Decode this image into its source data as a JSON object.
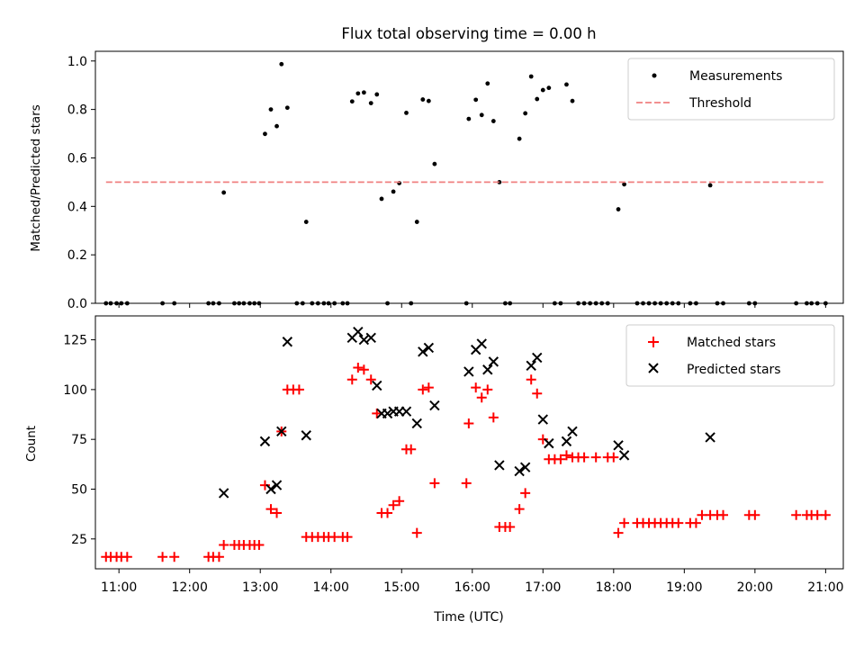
{
  "title": "Flux total observing time = 0.00 h",
  "chart_data": [
    {
      "type": "scatter",
      "ylabel": "Matched/Predicted stars",
      "ylim": [
        0,
        1.04
      ],
      "xlim": [
        "10:40",
        "21:15"
      ],
      "yticks": [
        {
          "v": 0,
          "label": "0.0"
        },
        {
          "v": 0.2,
          "label": "0.2"
        },
        {
          "v": 0.4,
          "label": "0.4"
        },
        {
          "v": 0.6,
          "label": "0.6"
        },
        {
          "v": 0.8,
          "label": "0.8"
        },
        {
          "v": 1.0,
          "label": "1.0"
        }
      ],
      "legend": {
        "position": "top-right"
      },
      "series": [
        {
          "name": "Measurements",
          "marker": "dot",
          "color": "#000000",
          "points": [
            [
              "10:49",
              0
            ],
            [
              "10:53",
              0
            ],
            [
              "10:58",
              0
            ],
            [
              "11:02",
              0
            ],
            [
              "11:07",
              0
            ],
            [
              "11:37",
              0
            ],
            [
              "11:47",
              0
            ],
            [
              "12:16",
              0
            ],
            [
              "12:20",
              0
            ],
            [
              "12:25",
              0
            ],
            [
              "12:29",
              0.457
            ],
            [
              "12:38",
              0
            ],
            [
              "12:42",
              0
            ],
            [
              "12:46",
              0
            ],
            [
              "12:51",
              0
            ],
            [
              "12:55",
              0
            ],
            [
              "12:59",
              0
            ],
            [
              "13:04",
              0.699
            ],
            [
              "13:09",
              0.8
            ],
            [
              "13:14",
              0.731
            ],
            [
              "13:18",
              0.987
            ],
            [
              "13:23",
              0.807
            ],
            [
              "13:31",
              0
            ],
            [
              "13:36",
              0
            ],
            [
              "13:39",
              0.336
            ],
            [
              "13:44",
              0
            ],
            [
              "13:49",
              0
            ],
            [
              "13:54",
              0
            ],
            [
              "13:58",
              0
            ],
            [
              "14:03",
              0
            ],
            [
              "14:10",
              0
            ],
            [
              "14:14",
              0
            ],
            [
              "14:18",
              0.833
            ],
            [
              "14:23",
              0.866
            ],
            [
              "14:28",
              0.87
            ],
            [
              "14:34",
              0.826
            ],
            [
              "14:39",
              0.862
            ],
            [
              "14:43",
              0.431
            ],
            [
              "14:48",
              0
            ],
            [
              "14:53",
              0.461
            ],
            [
              "14:58",
              0.496
            ],
            [
              "15:04",
              0.786
            ],
            [
              "15:08",
              0
            ],
            [
              "15:13",
              0.336
            ],
            [
              "15:18",
              0.841
            ],
            [
              "15:23",
              0.835
            ],
            [
              "15:28",
              0.575
            ],
            [
              "15:55",
              0
            ],
            [
              "15:57",
              0.761
            ],
            [
              "16:03",
              0.84
            ],
            [
              "16:08",
              0.777
            ],
            [
              "16:13",
              0.907
            ],
            [
              "16:18",
              0.752
            ],
            [
              "16:23",
              0.5
            ],
            [
              "16:28",
              0
            ],
            [
              "16:32",
              0
            ],
            [
              "16:40",
              0.679
            ],
            [
              "16:45",
              0.784
            ],
            [
              "16:50",
              0.936
            ],
            [
              "16:55",
              0.843
            ],
            [
              "17:00",
              0.88
            ],
            [
              "17:05",
              0.889
            ],
            [
              "17:10",
              0
            ],
            [
              "17:15",
              0
            ],
            [
              "17:20",
              0.903
            ],
            [
              "17:25",
              0.835
            ],
            [
              "17:30",
              0
            ],
            [
              "17:35",
              0
            ],
            [
              "17:40",
              0
            ],
            [
              "17:45",
              0
            ],
            [
              "17:50",
              0
            ],
            [
              "17:55",
              0
            ],
            [
              "18:04",
              0.388
            ],
            [
              "18:09",
              0.491
            ],
            [
              "18:20",
              0
            ],
            [
              "18:25",
              0
            ],
            [
              "18:30",
              0
            ],
            [
              "18:35",
              0
            ],
            [
              "18:40",
              0
            ],
            [
              "18:45",
              0
            ],
            [
              "18:50",
              0
            ],
            [
              "18:55",
              0
            ],
            [
              "19:05",
              0
            ],
            [
              "19:10",
              0
            ],
            [
              "19:22",
              0.487
            ],
            [
              "19:28",
              0
            ],
            [
              "19:33",
              0
            ],
            [
              "19:55",
              0
            ],
            [
              "20:00",
              0
            ],
            [
              "20:35",
              0
            ],
            [
              "20:44",
              0
            ],
            [
              "20:48",
              0
            ],
            [
              "20:53",
              0
            ],
            [
              "21:00",
              0
            ]
          ]
        },
        {
          "name": "Threshold",
          "marker": "dashed-line",
          "color": "#f08080",
          "points": [
            [
              "10:49",
              0.5
            ],
            [
              "21:00",
              0.5
            ]
          ]
        }
      ]
    },
    {
      "type": "scatter",
      "xlabel": "Time (UTC)",
      "ylabel": "Count",
      "ylim": [
        10,
        137
      ],
      "xlim": [
        "10:40",
        "21:15"
      ],
      "yticks": [
        {
          "v": 25,
          "label": "25"
        },
        {
          "v": 50,
          "label": "50"
        },
        {
          "v": 75,
          "label": "75"
        },
        {
          "v": 100,
          "label": "100"
        },
        {
          "v": 125,
          "label": "125"
        }
      ],
      "xticks": [
        "11:00",
        "12:00",
        "13:00",
        "14:00",
        "15:00",
        "16:00",
        "17:00",
        "18:00",
        "19:00",
        "20:00",
        "21:00"
      ],
      "legend": {
        "position": "top-right"
      },
      "series": [
        {
          "name": "Matched stars",
          "marker": "plus",
          "color": "#ff0000",
          "points": [
            [
              "10:49",
              16
            ],
            [
              "10:53",
              16
            ],
            [
              "10:58",
              16
            ],
            [
              "11:02",
              16
            ],
            [
              "11:07",
              16
            ],
            [
              "11:37",
              16
            ],
            [
              "11:47",
              16
            ],
            [
              "12:16",
              16
            ],
            [
              "12:20",
              16
            ],
            [
              "12:25",
              16
            ],
            [
              "12:29",
              22
            ],
            [
              "12:38",
              22
            ],
            [
              "12:42",
              22
            ],
            [
              "12:46",
              22
            ],
            [
              "12:51",
              22
            ],
            [
              "12:55",
              22
            ],
            [
              "12:59",
              22
            ],
            [
              "13:04",
              52
            ],
            [
              "13:09",
              40
            ],
            [
              "13:14",
              38
            ],
            [
              "13:18",
              79
            ],
            [
              "13:23",
              100
            ],
            [
              "13:28",
              100
            ],
            [
              "13:33",
              100
            ],
            [
              "13:39",
              26
            ],
            [
              "13:44",
              26
            ],
            [
              "13:49",
              26
            ],
            [
              "13:54",
              26
            ],
            [
              "13:58",
              26
            ],
            [
              "14:03",
              26
            ],
            [
              "14:10",
              26
            ],
            [
              "14:14",
              26
            ],
            [
              "14:18",
              105
            ],
            [
              "14:23",
              111
            ],
            [
              "14:28",
              110
            ],
            [
              "14:34",
              105
            ],
            [
              "14:39",
              88
            ],
            [
              "14:43",
              38
            ],
            [
              "14:48",
              38
            ],
            [
              "14:53",
              42
            ],
            [
              "14:58",
              44
            ],
            [
              "15:04",
              70
            ],
            [
              "15:08",
              70
            ],
            [
              "15:13",
              28
            ],
            [
              "15:18",
              100
            ],
            [
              "15:23",
              101
            ],
            [
              "15:28",
              53
            ],
            [
              "15:55",
              53
            ],
            [
              "15:57",
              83
            ],
            [
              "16:03",
              101
            ],
            [
              "16:08",
              96
            ],
            [
              "16:13",
              100
            ],
            [
              "16:18",
              86
            ],
            [
              "16:23",
              31
            ],
            [
              "16:28",
              31
            ],
            [
              "16:32",
              31
            ],
            [
              "16:40",
              40
            ],
            [
              "16:45",
              48
            ],
            [
              "16:50",
              105
            ],
            [
              "16:55",
              98
            ],
            [
              "17:00",
              75
            ],
            [
              "17:05",
              65
            ],
            [
              "17:10",
              65
            ],
            [
              "17:15",
              65
            ],
            [
              "17:20",
              67
            ],
            [
              "17:25",
              66
            ],
            [
              "17:30",
              66
            ],
            [
              "17:35",
              66
            ],
            [
              "17:45",
              66
            ],
            [
              "17:55",
              66
            ],
            [
              "18:00",
              66
            ],
            [
              "18:04",
              28
            ],
            [
              "18:09",
              33
            ],
            [
              "18:20",
              33
            ],
            [
              "18:25",
              33
            ],
            [
              "18:30",
              33
            ],
            [
              "18:35",
              33
            ],
            [
              "18:40",
              33
            ],
            [
              "18:45",
              33
            ],
            [
              "18:50",
              33
            ],
            [
              "18:55",
              33
            ],
            [
              "19:05",
              33
            ],
            [
              "19:10",
              33
            ],
            [
              "19:15",
              37
            ],
            [
              "19:22",
              37
            ],
            [
              "19:28",
              37
            ],
            [
              "19:33",
              37
            ],
            [
              "19:55",
              37
            ],
            [
              "20:00",
              37
            ],
            [
              "20:35",
              37
            ],
            [
              "20:44",
              37
            ],
            [
              "20:48",
              37
            ],
            [
              "20:53",
              37
            ],
            [
              "21:00",
              37
            ]
          ]
        },
        {
          "name": "Predicted stars",
          "marker": "x",
          "color": "#000000",
          "points": [
            [
              "12:29",
              48
            ],
            [
              "13:04",
              74
            ],
            [
              "13:09",
              50
            ],
            [
              "13:14",
              52
            ],
            [
              "13:18",
              79
            ],
            [
              "13:23",
              124
            ],
            [
              "13:39",
              77
            ],
            [
              "14:18",
              126
            ],
            [
              "14:23",
              129
            ],
            [
              "14:28",
              125
            ],
            [
              "14:34",
              126
            ],
            [
              "14:39",
              102
            ],
            [
              "14:43",
              88
            ],
            [
              "14:48",
              88
            ],
            [
              "14:53",
              89
            ],
            [
              "14:58",
              89
            ],
            [
              "15:04",
              89
            ],
            [
              "15:13",
              83
            ],
            [
              "15:18",
              119
            ],
            [
              "15:23",
              121
            ],
            [
              "15:28",
              92
            ],
            [
              "15:57",
              109
            ],
            [
              "16:03",
              120
            ],
            [
              "16:08",
              123
            ],
            [
              "16:13",
              110
            ],
            [
              "16:18",
              114
            ],
            [
              "16:23",
              62
            ],
            [
              "16:40",
              59
            ],
            [
              "16:45",
              61
            ],
            [
              "16:50",
              112
            ],
            [
              "16:55",
              116
            ],
            [
              "17:00",
              85
            ],
            [
              "17:05",
              73
            ],
            [
              "17:20",
              74
            ],
            [
              "17:25",
              79
            ],
            [
              "18:04",
              72
            ],
            [
              "18:09",
              67
            ],
            [
              "19:22",
              76
            ]
          ]
        }
      ]
    }
  ]
}
